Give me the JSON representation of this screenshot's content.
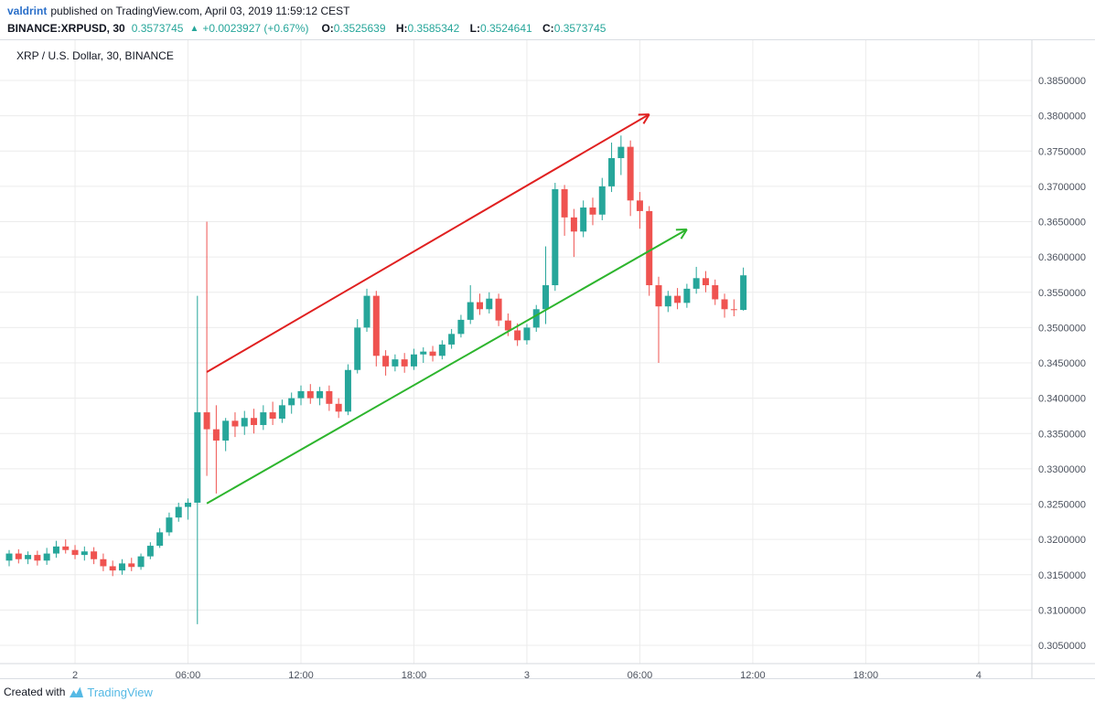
{
  "header": {
    "author": "valdrint",
    "published_text": "published on TradingView.com, April 03, 2019 11:59:12 CEST",
    "symbol": "BINANCE:XRPUSD, 30",
    "last_price": "0.3573745",
    "change_arrow": "▲",
    "change": "+0.0023927 (+0.67%)",
    "ohlc": [
      {
        "label": "O:",
        "value": "0.3525639"
      },
      {
        "label": "H:",
        "value": "0.3585342"
      },
      {
        "label": "L:",
        "value": "0.3524641"
      },
      {
        "label": "C:",
        "value": "0.3573745"
      }
    ]
  },
  "chart": {
    "title": "XRP / U.S. Dollar, 30, BINANCE"
  },
  "footer": {
    "created_with": "Created with",
    "brand": "TradingView"
  },
  "colors": {
    "up": "#26a69a",
    "down": "#ef5350",
    "trend_red": "#e02020",
    "trend_green": "#2db52d",
    "grid": "#ececec",
    "axis_line": "#d6d9de",
    "axis_text": "#4c525e",
    "author_blue": "#2a6fc9",
    "value_green": "#26a69a",
    "brand_blue": "#55b9e4"
  },
  "chart_data": {
    "type": "candlestick",
    "title": "XRP / U.S. Dollar, 30, BINANCE",
    "symbol": "BINANCE:XRPUSD",
    "interval_minutes": 30,
    "legend_position": "top-left",
    "grid": true,
    "y_axis": {
      "min": 0.305,
      "max": 0.385,
      "step": 0.005,
      "format_decimals": 7
    },
    "x_axis": {
      "ticks": [
        {
          "label": "2",
          "index": 7,
          "major": true
        },
        {
          "label": "06:00",
          "index": 19,
          "major": false
        },
        {
          "label": "12:00",
          "index": 31,
          "major": false
        },
        {
          "label": "18:00",
          "index": 43,
          "major": false
        },
        {
          "label": "3",
          "index": 55,
          "major": true
        },
        {
          "label": "06:00",
          "index": 67,
          "major": false
        },
        {
          "label": "12:00",
          "index": 79,
          "major": false
        },
        {
          "label": "18:00",
          "index": 91,
          "major": false
        },
        {
          "label": "4",
          "index": 103,
          "major": true
        }
      ]
    },
    "candles_format": [
      "open",
      "high",
      "low",
      "close"
    ],
    "candles": [
      [
        0.317,
        0.3185,
        0.3162,
        0.318
      ],
      [
        0.318,
        0.3186,
        0.3166,
        0.3172
      ],
      [
        0.3172,
        0.3183,
        0.3165,
        0.3178
      ],
      [
        0.3178,
        0.3184,
        0.3163,
        0.317
      ],
      [
        0.317,
        0.3188,
        0.3164,
        0.318
      ],
      [
        0.318,
        0.3198,
        0.3174,
        0.319
      ],
      [
        0.319,
        0.32,
        0.318,
        0.3185
      ],
      [
        0.3185,
        0.3192,
        0.3172,
        0.3178
      ],
      [
        0.3178,
        0.319,
        0.317,
        0.3183
      ],
      [
        0.3183,
        0.3189,
        0.3165,
        0.3172
      ],
      [
        0.3172,
        0.318,
        0.3155,
        0.3162
      ],
      [
        0.3162,
        0.317,
        0.3148,
        0.3156
      ],
      [
        0.3156,
        0.3172,
        0.315,
        0.3166
      ],
      [
        0.3166,
        0.3174,
        0.3155,
        0.3161
      ],
      [
        0.3161,
        0.318,
        0.3157,
        0.3176
      ],
      [
        0.3176,
        0.3196,
        0.3172,
        0.3191
      ],
      [
        0.3191,
        0.3216,
        0.3188,
        0.321
      ],
      [
        0.321,
        0.3238,
        0.3205,
        0.3231
      ],
      [
        0.3231,
        0.3252,
        0.3225,
        0.3246
      ],
      [
        0.3246,
        0.3258,
        0.3228,
        0.3252
      ],
      [
        0.3252,
        0.3545,
        0.308,
        0.338
      ],
      [
        0.338,
        0.365,
        0.329,
        0.3356
      ],
      [
        0.3356,
        0.339,
        0.3265,
        0.334
      ],
      [
        0.334,
        0.3372,
        0.3325,
        0.3368
      ],
      [
        0.3368,
        0.338,
        0.3345,
        0.336
      ],
      [
        0.336,
        0.3382,
        0.3348,
        0.3372
      ],
      [
        0.3372,
        0.3385,
        0.335,
        0.3362
      ],
      [
        0.3362,
        0.339,
        0.3355,
        0.338
      ],
      [
        0.338,
        0.3395,
        0.3362,
        0.3371
      ],
      [
        0.3371,
        0.3398,
        0.3365,
        0.339
      ],
      [
        0.339,
        0.3408,
        0.3378,
        0.34
      ],
      [
        0.34,
        0.3418,
        0.339,
        0.341
      ],
      [
        0.341,
        0.342,
        0.3392,
        0.34
      ],
      [
        0.34,
        0.3416,
        0.339,
        0.341
      ],
      [
        0.341,
        0.3418,
        0.3382,
        0.3392
      ],
      [
        0.3392,
        0.34,
        0.3372,
        0.3381
      ],
      [
        0.3381,
        0.3448,
        0.3376,
        0.344
      ],
      [
        0.344,
        0.3512,
        0.3435,
        0.35
      ],
      [
        0.35,
        0.3555,
        0.3494,
        0.3545
      ],
      [
        0.3545,
        0.3552,
        0.3445,
        0.346
      ],
      [
        0.346,
        0.3468,
        0.3432,
        0.3445
      ],
      [
        0.3445,
        0.3462,
        0.3438,
        0.3455
      ],
      [
        0.3455,
        0.3464,
        0.3436,
        0.3445
      ],
      [
        0.3445,
        0.347,
        0.344,
        0.3462
      ],
      [
        0.3462,
        0.3472,
        0.345,
        0.3466
      ],
      [
        0.3466,
        0.3474,
        0.3452,
        0.346
      ],
      [
        0.346,
        0.3482,
        0.3455,
        0.3476
      ],
      [
        0.3476,
        0.3498,
        0.347,
        0.3491
      ],
      [
        0.3491,
        0.3518,
        0.3486,
        0.3511
      ],
      [
        0.3511,
        0.356,
        0.3505,
        0.3536
      ],
      [
        0.3536,
        0.3548,
        0.3518,
        0.3526
      ],
      [
        0.3526,
        0.355,
        0.352,
        0.3541
      ],
      [
        0.3541,
        0.3548,
        0.3502,
        0.351
      ],
      [
        0.351,
        0.352,
        0.3488,
        0.3496
      ],
      [
        0.3496,
        0.3506,
        0.3474,
        0.3482
      ],
      [
        0.3482,
        0.3505,
        0.3476,
        0.35
      ],
      [
        0.35,
        0.3532,
        0.3494,
        0.3526
      ],
      [
        0.3526,
        0.3615,
        0.3505,
        0.356
      ],
      [
        0.356,
        0.3705,
        0.3552,
        0.3696
      ],
      [
        0.3696,
        0.3702,
        0.363,
        0.3656
      ],
      [
        0.3656,
        0.3668,
        0.36,
        0.3636
      ],
      [
        0.3636,
        0.368,
        0.3628,
        0.367
      ],
      [
        0.367,
        0.3684,
        0.3645,
        0.366
      ],
      [
        0.366,
        0.3712,
        0.3652,
        0.37
      ],
      [
        0.37,
        0.3762,
        0.3692,
        0.374
      ],
      [
        0.374,
        0.3772,
        0.3716,
        0.3756
      ],
      [
        0.3756,
        0.3765,
        0.3658,
        0.368
      ],
      [
        0.368,
        0.3692,
        0.364,
        0.3665
      ],
      [
        0.3665,
        0.3672,
        0.3545,
        0.356
      ],
      [
        0.356,
        0.3572,
        0.345,
        0.353
      ],
      [
        0.353,
        0.3552,
        0.3522,
        0.3545
      ],
      [
        0.3545,
        0.3556,
        0.3526,
        0.3535
      ],
      [
        0.3535,
        0.3562,
        0.3528,
        0.3555
      ],
      [
        0.3555,
        0.3586,
        0.3548,
        0.357
      ],
      [
        0.357,
        0.358,
        0.355,
        0.356
      ],
      [
        0.356,
        0.3568,
        0.3532,
        0.354
      ],
      [
        0.354,
        0.3548,
        0.3514,
        0.3526
      ],
      [
        0.3526,
        0.354,
        0.3516,
        0.3525
      ],
      [
        0.3525,
        0.3585,
        0.3524,
        0.3574
      ]
    ],
    "trend_lines": [
      {
        "name": "trend-line-upper-red",
        "color_key": "trend_red",
        "from": {
          "index": 21,
          "price": 0.3437
        },
        "to": {
          "index": 68,
          "price": 0.3802
        }
      },
      {
        "name": "trend-line-lower-green",
        "color_key": "trend_green",
        "from": {
          "index": 21,
          "price": 0.3251
        },
        "to": {
          "index": 72,
          "price": 0.3639
        }
      }
    ]
  }
}
